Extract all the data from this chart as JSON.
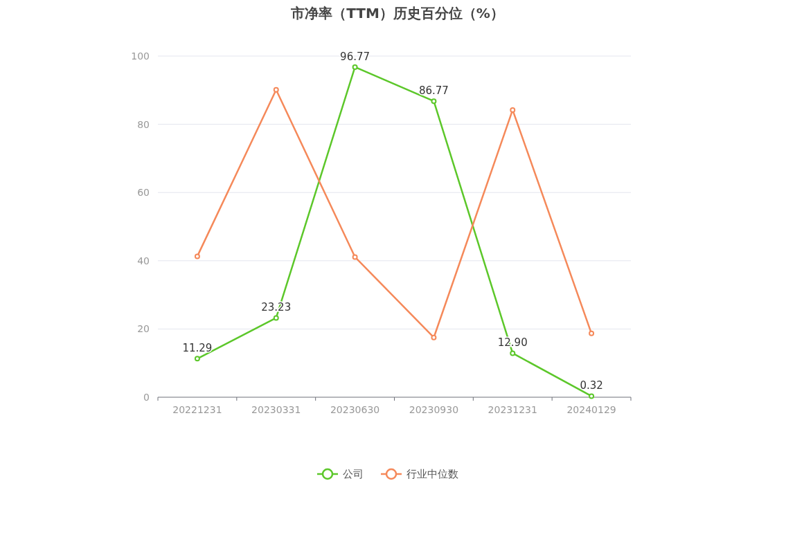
{
  "chart_data": {
    "type": "line",
    "title": "市净率（TTM）历史百分位（%）",
    "categories": [
      "20221231",
      "20230331",
      "20230630",
      "20230930",
      "20231231",
      "20240129"
    ],
    "ylim": [
      0,
      100
    ],
    "yticks": [
      0,
      20,
      40,
      60,
      80,
      100
    ],
    "grid": "y",
    "legend": "bottom",
    "marker": "circle",
    "series": [
      {
        "name": "公司",
        "color": "#5cc72a",
        "values": [
          11.29,
          23.23,
          96.77,
          86.77,
          12.9,
          0.32
        ],
        "value_labels": [
          "11.29",
          "23.23",
          "96.77",
          "86.77",
          "12.90",
          "0.32"
        ]
      },
      {
        "name": "行业中位数",
        "color": "#f5895a",
        "values": [
          41.3,
          90.1,
          41.1,
          17.5,
          84.2,
          18.7
        ]
      }
    ]
  }
}
